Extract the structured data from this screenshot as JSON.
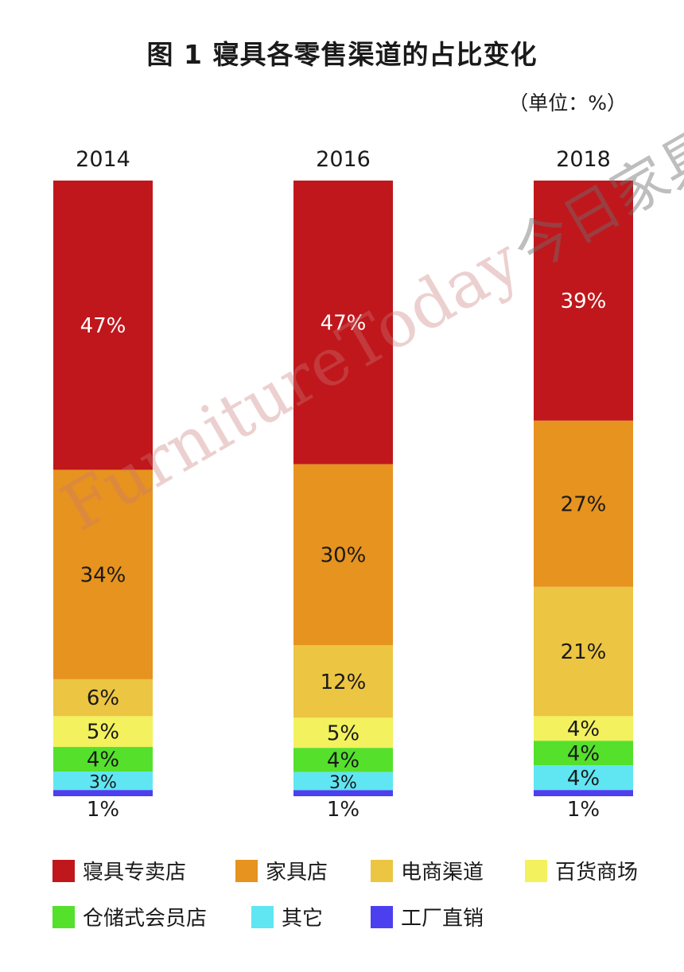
{
  "title": "图 1  寝具各零售渠道的占比变化",
  "unit_label": "（单位：%）",
  "watermark": {
    "latin": "FurnitureToday",
    "cjk": "今日家具"
  },
  "chart_data": {
    "type": "bar",
    "stacked": true,
    "categories": [
      "2014",
      "2016",
      "2018"
    ],
    "series": [
      {
        "name": "寝具专卖店",
        "color": "#c0171c",
        "values": [
          47,
          47,
          39
        ],
        "labels": [
          "47%",
          "47%",
          "39%"
        ]
      },
      {
        "name": "家具店",
        "color": "#e6931f",
        "values": [
          34,
          30,
          27
        ],
        "labels": [
          "34%",
          "30%",
          "27%"
        ]
      },
      {
        "name": "电商渠道",
        "color": "#ecc542",
        "values": [
          6,
          12,
          21
        ],
        "labels": [
          "6%",
          "12%",
          "21%"
        ]
      },
      {
        "name": "百货商场",
        "color": "#f3f15e",
        "values": [
          5,
          5,
          4
        ],
        "labels": [
          "5%",
          "5%",
          "4%"
        ]
      },
      {
        "name": "仓储式会员店",
        "color": "#55e02c",
        "values": [
          4,
          4,
          4
        ],
        "labels": [
          "4%",
          "4%",
          "4%"
        ]
      },
      {
        "name": "其它",
        "color": "#5fe6f2",
        "values": [
          3,
          3,
          4
        ],
        "labels": [
          "3%",
          "3%",
          "4%"
        ]
      },
      {
        "name": "工厂直销",
        "color": "#4b3ff0",
        "values": [
          1,
          1,
          1
        ],
        "labels": [
          "1%",
          "1%",
          "1%"
        ]
      }
    ],
    "legend_position": "bottom",
    "grid": false
  }
}
